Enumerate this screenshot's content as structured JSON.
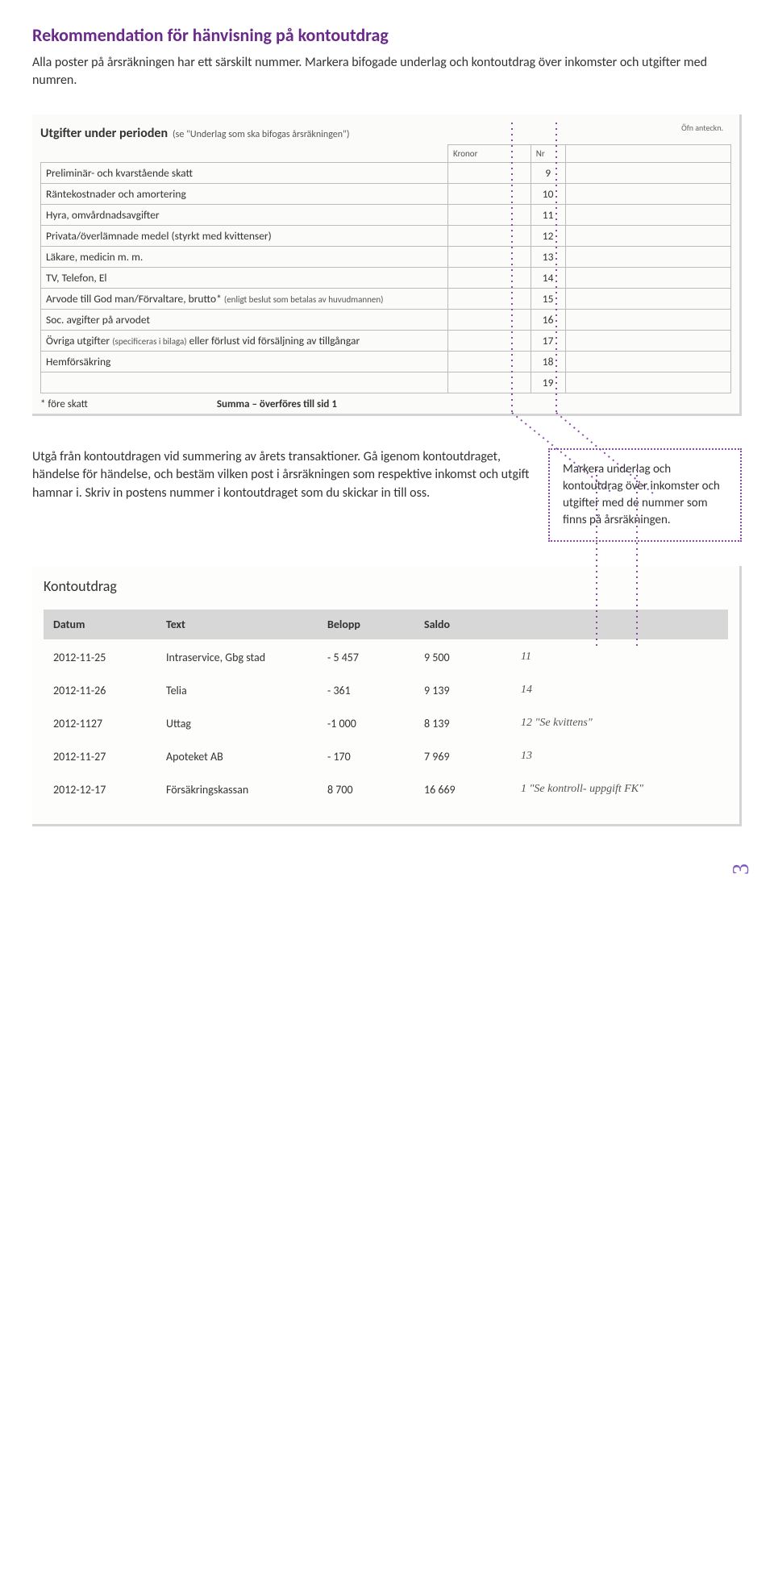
{
  "title": "Rekommendation för hänvisning på kontoutdrag",
  "intro": "Alla poster på årsräkningen har ett särskilt nummer. Markera bifogade underlag och kontoutdrag över inkomster och utgifter med numren.",
  "expense_form": {
    "heading": "Utgifter under perioden",
    "heading_sub": "(se \"Underlag som ska bifogas årsräkningen\")",
    "kr_label": "Kronor",
    "nr_label": "Nr",
    "ant_label": "Öfn anteckn.",
    "rows": [
      {
        "desc": "Preliminär- och kvarstående skatt",
        "nr": "9"
      },
      {
        "desc": "Räntekostnader och amortering",
        "nr": "10"
      },
      {
        "desc": "Hyra, omvårdnadsavgifter",
        "nr": "11"
      },
      {
        "desc": "Privata/överlämnade medel (styrkt med kvittenser)",
        "nr": "12"
      },
      {
        "desc": "Läkare, medicin m. m.",
        "nr": "13"
      },
      {
        "desc": "TV, Telefon, El",
        "nr": "14"
      },
      {
        "desc": "Arvode till God man/Förvaltare, brutto*",
        "desc_sub": "(enligt beslut som betalas av huvudmannen)",
        "nr": "15"
      },
      {
        "desc": "Soc. avgifter på arvodet",
        "nr": "16"
      },
      {
        "desc": "Övriga utgifter",
        "desc_sub": "(specificeras i bilaga)",
        "desc_tail": " eller förlust vid försäljning av tillgångar",
        "nr": "17"
      },
      {
        "desc": "Hemförsäkring",
        "nr": "18"
      },
      {
        "desc": "",
        "nr": "19"
      }
    ],
    "footnote_left": "* före skatt",
    "footnote_right": "Summa – överföres till sid 1"
  },
  "mid_paragraph": "Utgå från kontoutdragen vid summering av årets transaktioner. Gå igenom kontoutdraget, händelse för händelse, och bestäm vilken post i årsräkningen som respektive inkomst och utgift hamnar i. Skriv in postens nummer i kontoutdraget som du skickar in till oss.",
  "callout": "Markera underlag och kontoutdrag över inkomster och utgifter med de nummer som finns på årsräkningen.",
  "statement": {
    "title": "Kontoutdrag",
    "headers": {
      "date": "Datum",
      "text": "Text",
      "amount": "Belopp",
      "balance": "Saldo"
    },
    "rows": [
      {
        "date": "2012-11-25",
        "text": "Intraservice, Gbg stad",
        "amount": "- 5 457",
        "balance": "9 500",
        "note": "11"
      },
      {
        "date": "2012-11-26",
        "text": "Telia",
        "amount": "- 361",
        "balance": "9 139",
        "note": "14"
      },
      {
        "date": "2012-1127",
        "text": "Uttag",
        "amount": "-1 000",
        "balance": "8 139",
        "note": "12  \"Se kvittens\""
      },
      {
        "date": "2012-11-27",
        "text": "Apoteket AB",
        "amount": "- 170",
        "balance": "7 969",
        "note": "13"
      },
      {
        "date": "2012-12-17",
        "text": "Försäkringskassan",
        "amount": "8 700",
        "balance": "16 669",
        "note": "1  \"Se kontroll- uppgift FK\""
      }
    ]
  },
  "page_number": "3",
  "colors": {
    "accent": "#6a2a8a",
    "dotted": "#8a4aa8",
    "panel_shadow": "#d4d4d4",
    "header_bg": "#d7d7d7"
  }
}
